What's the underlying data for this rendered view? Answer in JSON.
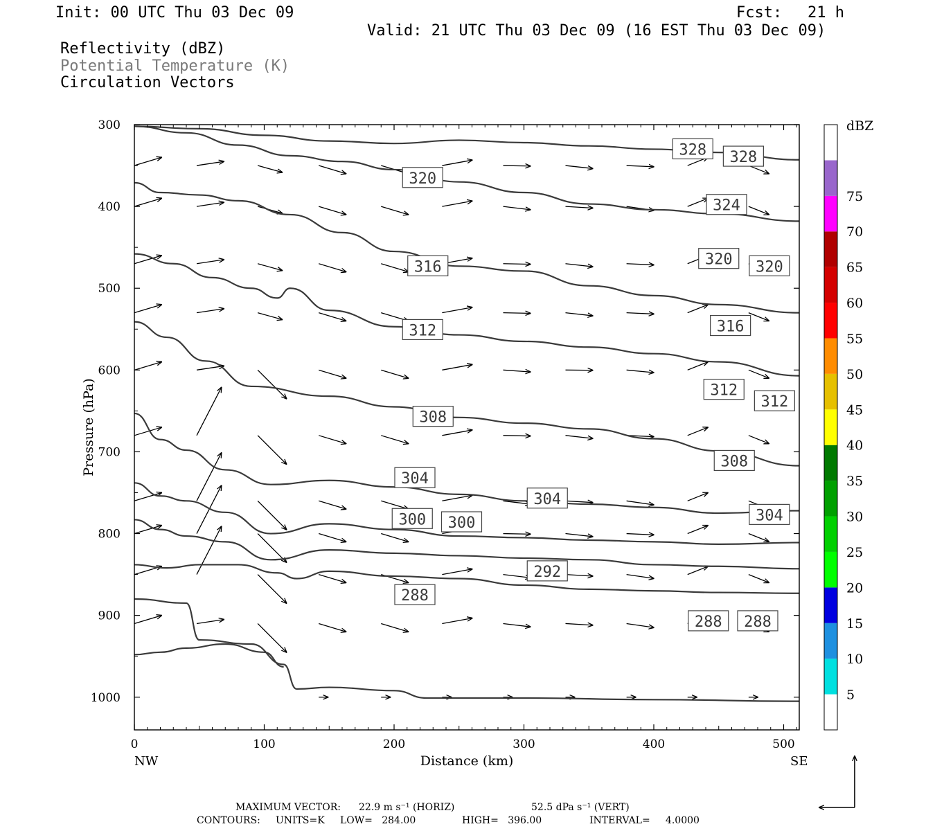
{
  "header": {
    "init": "Init: 00 UTC Thu 03 Dec 09",
    "fcst_label": "Fcst:",
    "fcst_value": "21 h",
    "valid": "Valid: 21 UTC Thu 03 Dec 09 (16 EST Thu 03 Dec 09)",
    "field_1": "Reflectivity (dBZ)",
    "field_2": "Potential Temperature (K)",
    "field_3": "Circulation Vectors"
  },
  "footer": {
    "max_vector_label": "MAXIMUM VECTOR:",
    "max_vector_horiz": "22.9 m s⁻¹ (HORIZ)",
    "max_vector_vert": "52.5 dPa s⁻¹ (VERT)",
    "contours_label": "CONTOURS:",
    "units": "UNITS=K",
    "low": "LOW=   284.00",
    "high": "HIGH=   396.00",
    "interval": "INTERVAL=     4.0000"
  },
  "colors": {
    "contour": "#3a3a3a",
    "vector": "#000000",
    "colorbar": [
      "#ffffff",
      "#00e0e0",
      "#1e90e0",
      "#0000e0",
      "#00ff00",
      "#00d000",
      "#00a000",
      "#007a00",
      "#ffff00",
      "#e6c000",
      "#ff8c00",
      "#ff0000",
      "#d40000",
      "#b00000",
      "#ff00ff",
      "#9966cc",
      "#ffffff"
    ]
  },
  "chart_data": {
    "type": "cross-section",
    "xlabel": "Distance (km)",
    "ylabel": "Pressure (hPa)",
    "xlim": [
      0,
      512
    ],
    "ylim": [
      1040,
      300
    ],
    "x_ticks": [
      0,
      100,
      200,
      300,
      400,
      500
    ],
    "y_ticks": [
      300,
      400,
      500,
      600,
      700,
      800,
      900,
      1000
    ],
    "x_end_labels": {
      "left": "NW",
      "right": "SE"
    },
    "colorbar": {
      "label": "dBZ",
      "ticks": [
        5,
        10,
        15,
        20,
        25,
        30,
        35,
        40,
        45,
        50,
        55,
        60,
        65,
        70,
        75
      ]
    },
    "contours": [
      {
        "value": 328,
        "points": [
          [
            0,
            302
          ],
          [
            50,
            305
          ],
          [
            100,
            313
          ],
          [
            150,
            320
          ],
          [
            200,
            323
          ],
          [
            250,
            319
          ],
          [
            300,
            322
          ],
          [
            350,
            326
          ],
          [
            400,
            330
          ],
          [
            450,
            334
          ],
          [
            512,
            343
          ]
        ]
      },
      {
        "value": 324,
        "points": [
          [
            0,
            302
          ],
          [
            40,
            310
          ],
          [
            80,
            325
          ],
          [
            120,
            338
          ],
          [
            160,
            345
          ],
          [
            200,
            355
          ],
          [
            250,
            370
          ],
          [
            300,
            383
          ],
          [
            350,
            397
          ],
          [
            400,
            404
          ],
          [
            450,
            409
          ],
          [
            512,
            418
          ]
        ]
      },
      {
        "value": 320,
        "points": [
          [
            0,
            371
          ],
          [
            20,
            383
          ],
          [
            50,
            386
          ],
          [
            80,
            393
          ],
          [
            120,
            410
          ],
          [
            160,
            432
          ],
          [
            200,
            455
          ],
          [
            250,
            473
          ],
          [
            300,
            479
          ],
          [
            350,
            497
          ],
          [
            400,
            509
          ],
          [
            450,
            520
          ],
          [
            512,
            530
          ]
        ]
      },
      {
        "value": 316,
        "points": [
          [
            0,
            458
          ],
          [
            30,
            470
          ],
          [
            60,
            487
          ],
          [
            90,
            500
          ],
          [
            110,
            512
          ],
          [
            120,
            500
          ],
          [
            150,
            527
          ],
          [
            200,
            547
          ],
          [
            250,
            557
          ],
          [
            300,
            565
          ],
          [
            350,
            572
          ],
          [
            400,
            580
          ],
          [
            450,
            590
          ],
          [
            512,
            607
          ]
        ]
      },
      {
        "value": 312,
        "points": [
          [
            0,
            541
          ],
          [
            25,
            560
          ],
          [
            55,
            589
          ],
          [
            90,
            620
          ],
          [
            150,
            632
          ],
          [
            200,
            645
          ],
          [
            250,
            658
          ],
          [
            300,
            665
          ],
          [
            350,
            672
          ],
          [
            400,
            684
          ],
          [
            450,
            699
          ],
          [
            512,
            717
          ]
        ]
      },
      {
        "value": 308,
        "points": [
          [
            0,
            653
          ],
          [
            20,
            685
          ],
          [
            40,
            698
          ],
          [
            70,
            722
          ],
          [
            105,
            740
          ],
          [
            150,
            735
          ],
          [
            200,
            743
          ],
          [
            250,
            752
          ],
          [
            300,
            760
          ],
          [
            350,
            764
          ],
          [
            400,
            768
          ],
          [
            450,
            775
          ],
          [
            512,
            772
          ]
        ]
      },
      {
        "value": 304,
        "points": [
          [
            0,
            738
          ],
          [
            20,
            754
          ],
          [
            40,
            760
          ],
          [
            70,
            774
          ],
          [
            105,
            800
          ],
          [
            150,
            788
          ],
          [
            200,
            795
          ],
          [
            250,
            803
          ],
          [
            300,
            805
          ],
          [
            350,
            808
          ],
          [
            400,
            810
          ],
          [
            450,
            813
          ],
          [
            512,
            811
          ]
        ]
      },
      {
        "value": 300,
        "points": [
          [
            0,
            783
          ],
          [
            20,
            795
          ],
          [
            40,
            803
          ],
          [
            70,
            810
          ],
          [
            105,
            832
          ],
          [
            150,
            820
          ],
          [
            200,
            824
          ],
          [
            250,
            827
          ],
          [
            300,
            830
          ],
          [
            350,
            832
          ],
          [
            400,
            838
          ],
          [
            450,
            840
          ],
          [
            512,
            843
          ]
        ]
      },
      {
        "value": 292,
        "points": [
          [
            0,
            838
          ],
          [
            25,
            842
          ],
          [
            50,
            838
          ],
          [
            80,
            838
          ],
          [
            110,
            848
          ],
          [
            125,
            855
          ],
          [
            150,
            846
          ],
          [
            200,
            852
          ],
          [
            250,
            855
          ],
          [
            300,
            863
          ],
          [
            350,
            868
          ],
          [
            400,
            870
          ],
          [
            450,
            872
          ],
          [
            512,
            873
          ]
        ]
      },
      {
        "value": 288,
        "points": [
          [
            0,
            880
          ],
          [
            40,
            885
          ],
          [
            50,
            930
          ],
          [
            90,
            935
          ],
          [
            115,
            960
          ],
          [
            125,
            990
          ],
          [
            150,
            988
          ],
          [
            200,
            992
          ],
          [
            225,
            1001
          ],
          [
            300,
            1001
          ],
          [
            400,
            1003
          ],
          [
            512,
            1005
          ]
        ]
      },
      {
        "value": 284,
        "points": [
          [
            0,
            948
          ],
          [
            20,
            945
          ],
          [
            40,
            940
          ],
          [
            70,
            935
          ],
          [
            100,
            945
          ],
          [
            115,
            963
          ]
        ]
      }
    ],
    "contour_labels": [
      {
        "text": "328",
        "x": 430,
        "p": 330
      },
      {
        "text": "328",
        "x": 469,
        "p": 339
      },
      {
        "text": "320",
        "x": 222,
        "p": 365
      },
      {
        "text": "324",
        "x": 456,
        "p": 398
      },
      {
        "text": "316",
        "x": 226,
        "p": 473
      },
      {
        "text": "320",
        "x": 450,
        "p": 464
      },
      {
        "text": "320",
        "x": 489,
        "p": 473
      },
      {
        "text": "312",
        "x": 222,
        "p": 551
      },
      {
        "text": "316",
        "x": 459,
        "p": 546
      },
      {
        "text": "312",
        "x": 454,
        "p": 624
      },
      {
        "text": "312",
        "x": 493,
        "p": 638
      },
      {
        "text": "308",
        "x": 230,
        "p": 657
      },
      {
        "text": "308",
        "x": 462,
        "p": 711
      },
      {
        "text": "304",
        "x": 216,
        "p": 732
      },
      {
        "text": "304",
        "x": 318,
        "p": 757
      },
      {
        "text": "304",
        "x": 489,
        "p": 777
      },
      {
        "text": "300",
        "x": 214,
        "p": 782
      },
      {
        "text": "300",
        "x": 252,
        "p": 786
      },
      {
        "text": "292",
        "x": 318,
        "p": 846
      },
      {
        "text": "288",
        "x": 216,
        "p": 875
      },
      {
        "text": "288",
        "x": 442,
        "p": 907
      },
      {
        "text": "288",
        "x": 480,
        "p": 907
      }
    ]
  }
}
